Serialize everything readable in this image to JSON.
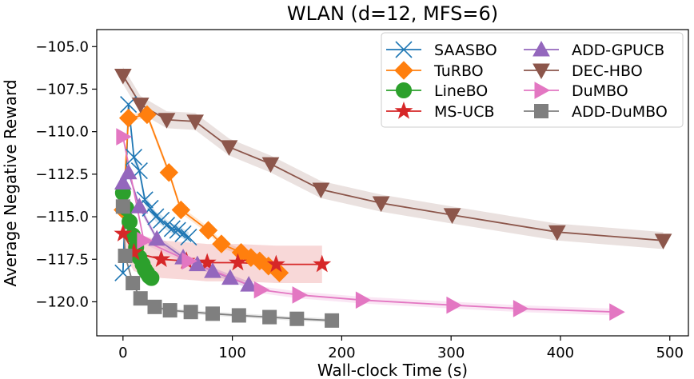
{
  "chart_data": {
    "type": "line",
    "title": "WLAN (d=12, MFS=6)",
    "xlabel": "Wall-clock Time (s)",
    "ylabel": "Average Negative Reward",
    "xlim": [
      -24,
      517
    ],
    "ylim": [
      -122.0,
      -104.0
    ],
    "xticks": [
      0,
      100,
      200,
      300,
      400,
      500
    ],
    "yticks": [
      -105.0,
      -107.5,
      -110.0,
      -112.5,
      -115.0,
      -117.5,
      -120.0
    ],
    "legend_position": "top-right",
    "series": [
      {
        "name": "SAASBO",
        "color": "#1f77b4",
        "marker": "x",
        "x": [
          0,
          5,
          10,
          15,
          20,
          25,
          30,
          35,
          40,
          45,
          50,
          55,
          60
        ],
        "y": [
          -118.3,
          -108.4,
          -111.5,
          -112.3,
          -114.0,
          -114.5,
          -115.0,
          -115.2,
          -115.5,
          -115.7,
          -115.8,
          -116.0,
          -116.2
        ],
        "band": 0.3
      },
      {
        "name": "TuRBO",
        "color": "#ff7f0e",
        "marker": "D",
        "x": [
          0,
          5,
          22,
          42,
          53,
          78,
          90,
          108,
          117,
          125,
          133,
          143
        ],
        "y": [
          -114.6,
          -109.2,
          -109.0,
          -112.4,
          -114.6,
          -115.8,
          -116.6,
          -117.1,
          -117.4,
          -117.6,
          -117.9,
          -118.3
        ],
        "band": 0.2
      },
      {
        "name": "LineBO",
        "color": "#2ca02c",
        "marker": "o",
        "x": [
          0,
          3,
          6,
          9,
          12,
          15,
          18,
          20,
          22,
          24,
          26
        ],
        "y": [
          -113.6,
          -114.5,
          -115.3,
          -116.1,
          -116.8,
          -117.4,
          -117.8,
          -118.1,
          -118.3,
          -118.5,
          -118.6
        ],
        "band": 0.3
      },
      {
        "name": "MS-UCB",
        "color": "#d62728",
        "marker": "*",
        "x": [
          0,
          10,
          35,
          58,
          77,
          105,
          140,
          182
        ],
        "y": [
          -116.0,
          -117.1,
          -117.5,
          -117.6,
          -117.7,
          -117.7,
          -117.8,
          -117.8
        ],
        "band": 1.1
      },
      {
        "name": "ADD-GPUCB",
        "color": "#9467bd",
        "marker": "^",
        "x": [
          0,
          5,
          15,
          31,
          55,
          68,
          82,
          98,
          115
        ],
        "y": [
          -113.0,
          -112.4,
          -114.4,
          -116.3,
          -117.4,
          -117.8,
          -118.2,
          -118.6,
          -119.0
        ],
        "band": 0.2
      },
      {
        "name": "DEC-HBO",
        "color": "#8c564b",
        "marker": "v",
        "x": [
          0,
          16,
          40,
          66,
          97,
          135,
          181,
          236,
          301,
          397,
          494
        ],
        "y": [
          -106.7,
          -108.4,
          -109.3,
          -109.4,
          -110.9,
          -111.9,
          -113.4,
          -114.2,
          -114.9,
          -115.9,
          -116.4
        ],
        "band": 0.5
      },
      {
        "name": "DuMBO",
        "color": "#e377c2",
        "marker": ">",
        "x": [
          0,
          19,
          60,
          126,
          161,
          219,
          302,
          363,
          451
        ],
        "y": [
          -110.3,
          -116.4,
          -117.6,
          -119.3,
          -119.6,
          -119.9,
          -120.2,
          -120.4,
          -120.6
        ],
        "band": 0.2
      },
      {
        "name": "ADD-DuMBO",
        "color": "#7f7f7f",
        "marker": "s",
        "x": [
          0,
          2,
          9,
          16,
          29,
          43,
          62,
          82,
          106,
          134,
          159,
          191
        ],
        "y": [
          -114.4,
          -117.3,
          -118.9,
          -119.8,
          -120.3,
          -120.5,
          -120.6,
          -120.7,
          -120.8,
          -120.9,
          -121.0,
          -121.1
        ],
        "band": 0.12
      }
    ]
  }
}
